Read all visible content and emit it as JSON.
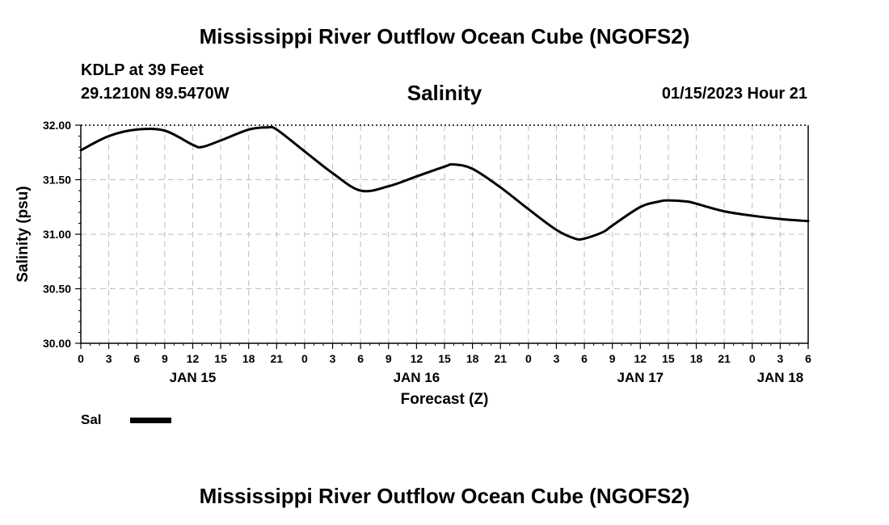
{
  "header": {
    "title_top": "Mississippi River Outflow Ocean Cube (NGOFS2)",
    "station": "KDLP at 39 Feet",
    "coords": "29.1210N  89.5470W",
    "variable": "Salinity",
    "datetime": "01/15/2023 Hour 21",
    "title_bottom": "Mississippi River Outflow Ocean Cube (NGOFS2)"
  },
  "legend": {
    "label": "Sal",
    "color": "#000000"
  },
  "chart_data": {
    "type": "line",
    "title": "Salinity",
    "xlabel": "Forecast (Z)",
    "ylabel": "Salinity (psu)",
    "xlim": [
      0,
      78
    ],
    "ylim": [
      30.0,
      32.0
    ],
    "grid": true,
    "x_tick_values": [
      0,
      3,
      6,
      9,
      12,
      15,
      18,
      21,
      24,
      27,
      30,
      33,
      36,
      39,
      42,
      45,
      48,
      51,
      54,
      57,
      60,
      63,
      66,
      69,
      72,
      75,
      78
    ],
    "x_tick_labels": [
      "0",
      "3",
      "6",
      "9",
      "12",
      "15",
      "18",
      "21",
      "0",
      "3",
      "6",
      "9",
      "12",
      "15",
      "18",
      "21",
      "0",
      "3",
      "6",
      "9",
      "12",
      "15",
      "18",
      "21",
      "0",
      "3",
      "6"
    ],
    "y_tick_values": [
      30.0,
      30.5,
      31.0,
      31.5,
      32.0
    ],
    "y_tick_labels": [
      "30.00",
      "30.50",
      "31.00",
      "31.50",
      "32.00"
    ],
    "date_labels": [
      {
        "x": 12,
        "label": "JAN 15"
      },
      {
        "x": 36,
        "label": "JAN 16"
      },
      {
        "x": 60,
        "label": "JAN 17"
      },
      {
        "x": 75,
        "label": "JAN 18"
      }
    ],
    "series": [
      {
        "name": "Sal",
        "color": "#000000",
        "x": [
          0,
          3,
          6,
          9,
          12,
          13,
          15,
          18,
          20,
          21,
          24,
          27,
          30,
          33,
          36,
          39,
          40,
          42,
          45,
          48,
          51,
          53,
          54,
          56,
          57,
          60,
          62,
          63,
          65,
          66,
          69,
          72,
          75,
          78
        ],
        "values": [
          31.77,
          31.9,
          31.96,
          31.95,
          31.82,
          31.8,
          31.86,
          31.96,
          31.98,
          31.96,
          31.76,
          31.56,
          31.4,
          31.44,
          31.53,
          31.62,
          31.64,
          31.6,
          31.43,
          31.23,
          31.04,
          30.96,
          30.96,
          31.02,
          31.08,
          31.25,
          31.3,
          31.31,
          31.3,
          31.28,
          31.21,
          31.17,
          31.14,
          31.12
        ]
      }
    ]
  }
}
